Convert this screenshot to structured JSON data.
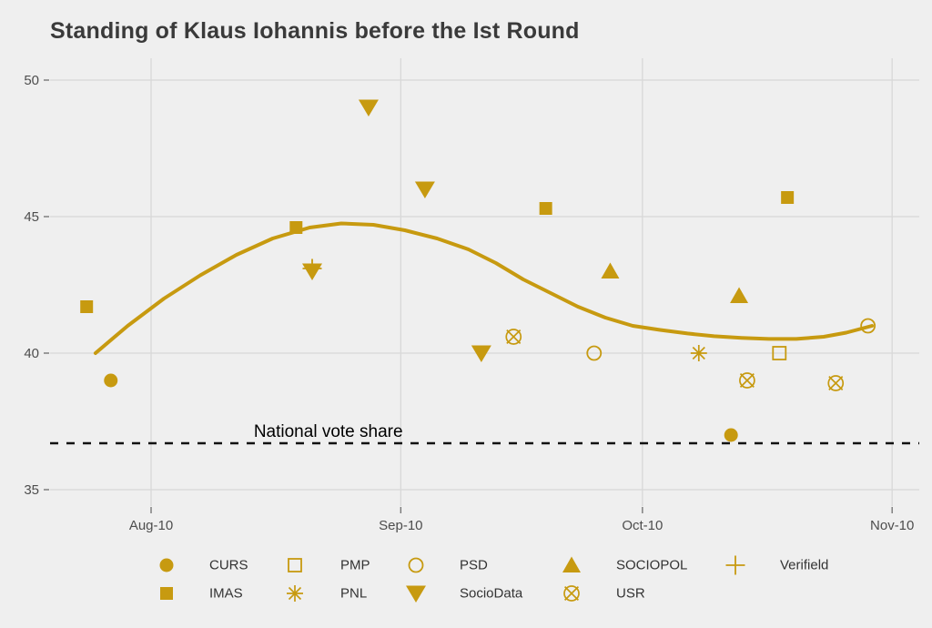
{
  "title": "Standing of Klaus Iohannis before the Ist Round",
  "colors": {
    "accent": "#C79A10",
    "background": "#EFEFEF",
    "grid": "#D8D8D8",
    "tick": "#777777",
    "axis_text": "#4D4D4D",
    "title_text": "#3A3A3A",
    "legend_text": "#333333",
    "reference": "#111111",
    "annotation": "#000000"
  },
  "chart_data": {
    "type": "scatter",
    "title": "Standing of Klaus Iohannis before the Ist Round",
    "x_axis": {
      "unit": "days relative to Aug 10",
      "range_days": [
        -12.5,
        95.4
      ],
      "ticks": [
        {
          "label": "Aug-10",
          "day": 0
        },
        {
          "label": "Sep-10",
          "day": 31
        },
        {
          "label": "Oct-10",
          "day": 61
        },
        {
          "label": "Nov-10",
          "day": 92
        }
      ]
    },
    "y_axis": {
      "ticks": [
        50,
        45,
        40,
        35
      ],
      "range": [
        33.4,
        50.8
      ],
      "grid": true
    },
    "series": [
      {
        "name": "CURS",
        "shape": "filled-circle",
        "points": [
          {
            "x": -5,
            "y": 39.0
          },
          {
            "x": 72,
            "y": 37.0
          }
        ]
      },
      {
        "name": "IMAS",
        "shape": "filled-square",
        "points": [
          {
            "x": -8,
            "y": 41.7
          },
          {
            "x": 18,
            "y": 44.6
          },
          {
            "x": 49,
            "y": 45.3
          },
          {
            "x": 79,
            "y": 45.7
          }
        ]
      },
      {
        "name": "PMP",
        "shape": "open-square",
        "points": [
          {
            "x": 78,
            "y": 40.0
          }
        ]
      },
      {
        "name": "PNL",
        "shape": "asterisk",
        "points": [
          {
            "x": 68,
            "y": 40.0
          }
        ]
      },
      {
        "name": "PSD",
        "shape": "open-circle",
        "points": [
          {
            "x": 55,
            "y": 40.0
          },
          {
            "x": 89,
            "y": 41.0
          }
        ]
      },
      {
        "name": "SOCIOPOL",
        "shape": "filled-triangle-up",
        "points": [
          {
            "x": 57,
            "y": 43.0
          },
          {
            "x": 73,
            "y": 42.1
          }
        ]
      },
      {
        "name": "Verifield",
        "shape": "plus",
        "points": [
          {
            "x": 20,
            "y": 43.1
          }
        ]
      },
      {
        "name": "SocioData",
        "shape": "filled-triangle-down",
        "points": [
          {
            "x": 20,
            "y": 43.0
          },
          {
            "x": 27,
            "y": 49.0
          },
          {
            "x": 34,
            "y": 46.0
          },
          {
            "x": 41,
            "y": 40.0
          }
        ]
      },
      {
        "name": "USR",
        "shape": "circle-x",
        "points": [
          {
            "x": 45,
            "y": 40.6
          },
          {
            "x": 74,
            "y": 39.0
          },
          {
            "x": 85,
            "y": 38.9
          }
        ]
      }
    ],
    "trend_line": {
      "name": "loess-smooth",
      "points": [
        [
          -6.9,
          40.0
        ],
        [
          -2.9,
          41.0
        ],
        [
          1.6,
          42.0
        ],
        [
          6.1,
          42.85
        ],
        [
          10.6,
          43.6
        ],
        [
          15.1,
          44.2
        ],
        [
          19.7,
          44.6
        ],
        [
          23.6,
          44.75
        ],
        [
          27.6,
          44.7
        ],
        [
          31.5,
          44.5
        ],
        [
          35.5,
          44.2
        ],
        [
          39.4,
          43.8
        ],
        [
          42.8,
          43.3
        ],
        [
          46.2,
          42.7
        ],
        [
          49.6,
          42.2
        ],
        [
          53.0,
          41.7
        ],
        [
          56.4,
          41.3
        ],
        [
          59.8,
          41.0
        ],
        [
          63.2,
          40.85
        ],
        [
          66.6,
          40.72
        ],
        [
          69.9,
          40.62
        ],
        [
          73.3,
          40.56
        ],
        [
          76.7,
          40.52
        ],
        [
          80.1,
          40.52
        ],
        [
          83.5,
          40.6
        ],
        [
          86.3,
          40.75
        ],
        [
          89.5,
          41.0
        ]
      ]
    },
    "reference_line": {
      "value": 36.7,
      "style": "dashed",
      "label": "National vote share",
      "label_day": 22
    },
    "legend": {
      "position": "bottom",
      "entries": [
        {
          "label": "CURS",
          "shape": "filled-circle",
          "row": 0,
          "col": 0
        },
        {
          "label": "PMP",
          "shape": "open-square",
          "row": 0,
          "col": 1
        },
        {
          "label": "PSD",
          "shape": "open-circle",
          "row": 0,
          "col": 2
        },
        {
          "label": "SOCIOPOL",
          "shape": "filled-triangle-up",
          "row": 0,
          "col": 3
        },
        {
          "label": "Verifield",
          "shape": "plus",
          "row": 0,
          "col": 4
        },
        {
          "label": "IMAS",
          "shape": "filled-square",
          "row": 1,
          "col": 0
        },
        {
          "label": "PNL",
          "shape": "asterisk",
          "row": 1,
          "col": 1
        },
        {
          "label": "SocioData",
          "shape": "filled-triangle-down",
          "row": 1,
          "col": 2
        },
        {
          "label": "USR",
          "shape": "circle-x",
          "row": 1,
          "col": 3
        }
      ]
    }
  }
}
